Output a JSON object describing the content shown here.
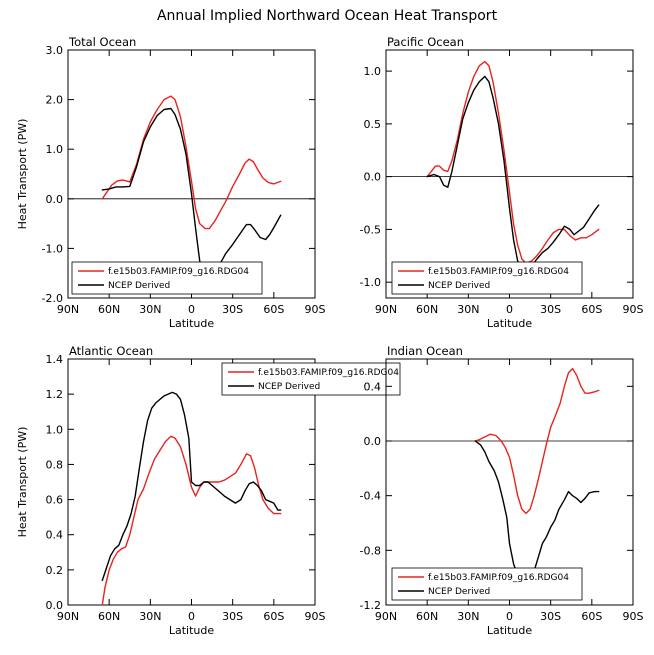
{
  "title": "Annual Implied Northward Ocean Heat Transport",
  "x_ticks": [
    "90N",
    "60N",
    "30N",
    "0",
    "30S",
    "60S",
    "90S"
  ],
  "x_label": "Latitude",
  "y_label": "Heat Transport (PW)",
  "colors": {
    "model": "#e8231e",
    "obs": "#000000"
  },
  "series_names": [
    "f.e15b03.FAMIP.f09_g16.RDG04",
    "NCEP Derived"
  ],
  "chart_data": [
    {
      "type": "line",
      "panel_title": "Total Ocean",
      "xlim": [
        90,
        -90
      ],
      "ylim": [
        -2.0,
        3.0
      ],
      "y_ticks": [
        -2.0,
        -1.0,
        0.0,
        1.0,
        2.0,
        3.0
      ],
      "y_tick_labels": [
        "-2.0",
        "-1.0",
        "0.0",
        "1.0",
        "2.0",
        "3.0"
      ],
      "zero_line": true,
      "legend_position": "bottom-left",
      "series": [
        {
          "name": "f.e15b03.FAMIP.f09_g16.RDG04",
          "color": "#e8231e",
          "x": [
            65,
            62,
            58,
            54,
            50,
            45,
            40,
            35,
            30,
            25,
            20,
            15,
            12,
            8,
            4,
            0,
            -3,
            -6,
            -10,
            -13,
            -17,
            -21,
            -25,
            -30,
            -35,
            -39,
            -42,
            -45,
            -48,
            -52,
            -56,
            -60,
            -65
          ],
          "y": [
            0.0,
            0.12,
            0.28,
            0.36,
            0.38,
            0.34,
            0.7,
            1.2,
            1.55,
            1.8,
            2.0,
            2.07,
            2.0,
            1.65,
            1.05,
            0.35,
            -0.2,
            -0.5,
            -0.6,
            -0.6,
            -0.45,
            -0.25,
            -0.05,
            0.25,
            0.5,
            0.72,
            0.8,
            0.75,
            0.6,
            0.42,
            0.33,
            0.3,
            0.35
          ]
        },
        {
          "name": "NCEP Derived",
          "color": "#000000",
          "x": [
            65,
            60,
            55,
            50,
            45,
            40,
            35,
            30,
            25,
            20,
            15,
            12,
            8,
            4,
            0,
            -3,
            -6,
            -10,
            -13,
            -17,
            -21,
            -25,
            -30,
            -35,
            -40,
            -43,
            -46,
            -50,
            -54,
            -57,
            -60,
            -65
          ],
          "y": [
            0.18,
            0.2,
            0.24,
            0.24,
            0.25,
            0.65,
            1.15,
            1.45,
            1.68,
            1.8,
            1.82,
            1.7,
            1.4,
            0.9,
            0.1,
            -0.6,
            -1.25,
            -1.58,
            -1.62,
            -1.5,
            -1.3,
            -1.1,
            -0.92,
            -0.72,
            -0.52,
            -0.52,
            -0.62,
            -0.78,
            -0.82,
            -0.72,
            -0.58,
            -0.33
          ]
        }
      ]
    },
    {
      "type": "line",
      "panel_title": "Pacific Ocean",
      "xlim": [
        90,
        -90
      ],
      "ylim": [
        -1.15,
        1.2
      ],
      "y_ticks": [
        -1.0,
        -0.5,
        0.0,
        0.5,
        1.0
      ],
      "y_tick_labels": [
        "-1.0",
        "-0.5",
        "0.0",
        "0.5",
        "1.0"
      ],
      "zero_line": true,
      "legend_position": "bottom-left",
      "series": [
        {
          "name": "f.e15b03.FAMIP.f09_g16.RDG04",
          "color": "#e8231e",
          "x": [
            60,
            57,
            54,
            51,
            48,
            45,
            42,
            38,
            34,
            30,
            26,
            22,
            18,
            15,
            12,
            8,
            4,
            0,
            -3,
            -6,
            -9,
            -12,
            -16,
            -20,
            -24,
            -28,
            -32,
            -36,
            -40,
            -44,
            -48,
            -52,
            -56,
            -60,
            -65
          ],
          "y": [
            0.0,
            0.05,
            0.1,
            0.1,
            0.06,
            0.05,
            0.15,
            0.35,
            0.6,
            0.8,
            0.95,
            1.05,
            1.09,
            1.05,
            0.9,
            0.6,
            0.25,
            -0.15,
            -0.45,
            -0.65,
            -0.78,
            -0.82,
            -0.8,
            -0.75,
            -0.68,
            -0.6,
            -0.53,
            -0.5,
            -0.5,
            -0.56,
            -0.6,
            -0.58,
            -0.58,
            -0.55,
            -0.5
          ]
        },
        {
          "name": "NCEP Derived",
          "color": "#000000",
          "x": [
            60,
            55,
            51,
            48,
            45,
            42,
            38,
            34,
            30,
            26,
            22,
            18,
            15,
            12,
            8,
            4,
            0,
            -3,
            -6,
            -9,
            -12,
            -16,
            -20,
            -24,
            -28,
            -32,
            -36,
            -40,
            -44,
            -47,
            -50,
            -54,
            -58,
            -62,
            -65
          ],
          "y": [
            0.0,
            0.02,
            0.0,
            -0.08,
            -0.1,
            0.05,
            0.3,
            0.55,
            0.7,
            0.82,
            0.9,
            0.95,
            0.9,
            0.75,
            0.5,
            0.15,
            -0.3,
            -0.6,
            -0.8,
            -0.88,
            -0.9,
            -0.85,
            -0.78,
            -0.72,
            -0.68,
            -0.62,
            -0.55,
            -0.47,
            -0.5,
            -0.55,
            -0.52,
            -0.48,
            -0.4,
            -0.32,
            -0.27
          ]
        }
      ]
    },
    {
      "type": "line",
      "panel_title": "Atlantic Ocean",
      "xlim": [
        90,
        -90
      ],
      "ylim": [
        0.0,
        1.4
      ],
      "y_ticks": [
        0.0,
        0.2,
        0.4,
        0.6,
        0.8,
        1.0,
        1.2,
        1.4
      ],
      "y_tick_labels": [
        "0.0",
        "0.2",
        "0.4",
        "0.6",
        "0.8",
        "1.0",
        "1.2",
        "1.4"
      ],
      "zero_line": false,
      "legend_position": "top-right",
      "series": [
        {
          "name": "f.e15b03.FAMIP.f09_g16.RDG04",
          "color": "#e8231e",
          "x": [
            65,
            63,
            60,
            57,
            54,
            51,
            48,
            45,
            42,
            39,
            35,
            31,
            27,
            23,
            19,
            15,
            12,
            8,
            4,
            0,
            -3,
            -6,
            -9,
            -12,
            -16,
            -20,
            -24,
            -28,
            -32,
            -36,
            -40,
            -43,
            -46,
            -49,
            -52,
            -56,
            -60,
            -65
          ],
          "y": [
            0.0,
            0.1,
            0.2,
            0.26,
            0.3,
            0.32,
            0.33,
            0.4,
            0.5,
            0.6,
            0.66,
            0.75,
            0.83,
            0.88,
            0.93,
            0.96,
            0.95,
            0.9,
            0.8,
            0.67,
            0.62,
            0.67,
            0.7,
            0.7,
            0.7,
            0.7,
            0.71,
            0.73,
            0.75,
            0.8,
            0.86,
            0.85,
            0.78,
            0.68,
            0.6,
            0.55,
            0.52,
            0.52
          ]
        },
        {
          "name": "NCEP Derived",
          "color": "#000000",
          "x": [
            65,
            62,
            59,
            56,
            53,
            50,
            47,
            44,
            41,
            38,
            35,
            32,
            29,
            26,
            23,
            20,
            17,
            14,
            11,
            8,
            5,
            2,
            0,
            -3,
            -6,
            -9,
            -12,
            -15,
            -18,
            -21,
            -24,
            -28,
            -32,
            -36,
            -39,
            -42,
            -45,
            -48,
            -51,
            -54,
            -57,
            -60,
            -63,
            -65
          ],
          "y": [
            0.14,
            0.21,
            0.28,
            0.32,
            0.34,
            0.4,
            0.45,
            0.52,
            0.62,
            0.78,
            0.93,
            1.05,
            1.12,
            1.15,
            1.17,
            1.19,
            1.2,
            1.21,
            1.2,
            1.17,
            1.08,
            0.95,
            0.7,
            0.68,
            0.68,
            0.7,
            0.7,
            0.68,
            0.66,
            0.64,
            0.62,
            0.6,
            0.58,
            0.6,
            0.65,
            0.69,
            0.7,
            0.68,
            0.65,
            0.6,
            0.59,
            0.58,
            0.54,
            0.54
          ]
        }
      ]
    },
    {
      "type": "line",
      "panel_title": "Indian Ocean",
      "xlim": [
        90,
        -90
      ],
      "ylim": [
        -1.2,
        0.6
      ],
      "y_ticks": [
        -1.2,
        -0.8,
        -0.4,
        0.0,
        0.4
      ],
      "y_tick_labels": [
        "-1.2",
        "-0.8",
        "-0.4",
        "0.0",
        "0.4"
      ],
      "zero_line": true,
      "legend_position": "bottom-left",
      "series": [
        {
          "name": "f.e15b03.FAMIP.f09_g16.RDG04",
          "color": "#e8231e",
          "x": [
            25,
            22,
            18,
            14,
            10,
            6,
            3,
            0,
            -3,
            -6,
            -9,
            -12,
            -15,
            -18,
            -21,
            -24,
            -27,
            -30,
            -34,
            -37,
            -40,
            -43,
            -46,
            -49,
            -52,
            -55,
            -58,
            -62,
            -65
          ],
          "y": [
            0.0,
            0.01,
            0.03,
            0.05,
            0.04,
            0.0,
            -0.05,
            -0.12,
            -0.25,
            -0.4,
            -0.5,
            -0.53,
            -0.5,
            -0.4,
            -0.28,
            -0.15,
            -0.02,
            0.1,
            0.2,
            0.28,
            0.4,
            0.5,
            0.53,
            0.48,
            0.4,
            0.35,
            0.35,
            0.36,
            0.37
          ]
        },
        {
          "name": "NCEP Derived",
          "color": "#000000",
          "x": [
            25,
            21,
            18,
            15,
            11,
            8,
            5,
            2,
            0,
            -3,
            -6,
            -9,
            -12,
            -15,
            -18,
            -21,
            -24,
            -27,
            -30,
            -33,
            -36,
            -40,
            -43,
            -46,
            -49,
            -52,
            -55,
            -58,
            -62,
            -65
          ],
          "y": [
            0.0,
            -0.03,
            -0.08,
            -0.15,
            -0.22,
            -0.3,
            -0.42,
            -0.56,
            -0.75,
            -0.9,
            -0.98,
            -1.01,
            -1.04,
            -1.02,
            -0.95,
            -0.85,
            -0.75,
            -0.7,
            -0.63,
            -0.58,
            -0.5,
            -0.43,
            -0.37,
            -0.4,
            -0.42,
            -0.45,
            -0.42,
            -0.38,
            -0.37,
            -0.37
          ]
        }
      ]
    }
  ]
}
